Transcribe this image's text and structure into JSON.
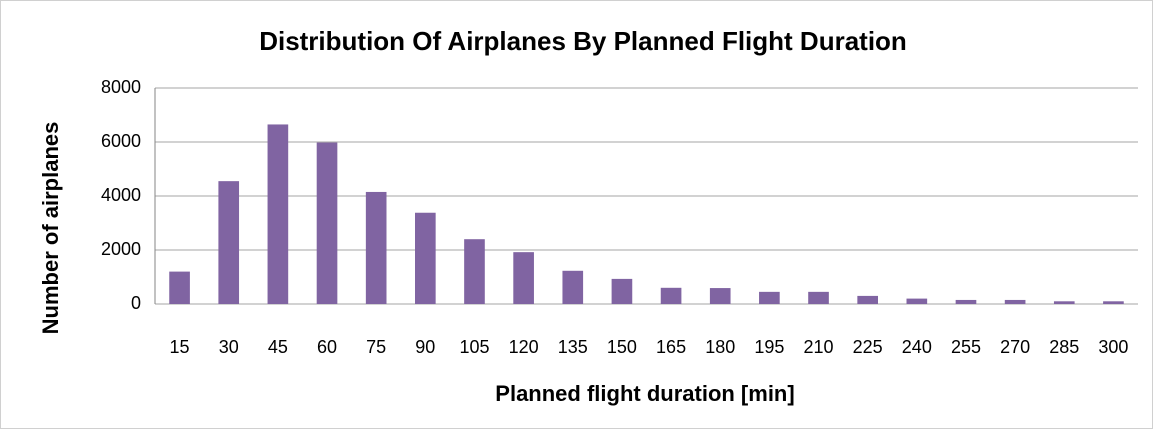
{
  "chart_data": {
    "type": "bar",
    "title": "Distribution Of Airplanes By Planned Flight Duration",
    "xlabel": "Planned flight duration [min]",
    "ylabel": "Number of airplanes",
    "categories": [
      "15",
      "30",
      "45",
      "60",
      "75",
      "90",
      "105",
      "120",
      "135",
      "150",
      "165",
      "180",
      "195",
      "210",
      "225",
      "240",
      "255",
      "270",
      "285",
      "300"
    ],
    "values": [
      1200,
      4550,
      6650,
      5980,
      4150,
      3380,
      2400,
      1920,
      1230,
      930,
      600,
      590,
      450,
      450,
      300,
      200,
      150,
      150,
      100,
      100
    ],
    "color": "#8064a2",
    "ylim": [
      0,
      8000
    ],
    "yticks": [
      0,
      2000,
      4000,
      6000,
      8000
    ],
    "grid": true
  }
}
